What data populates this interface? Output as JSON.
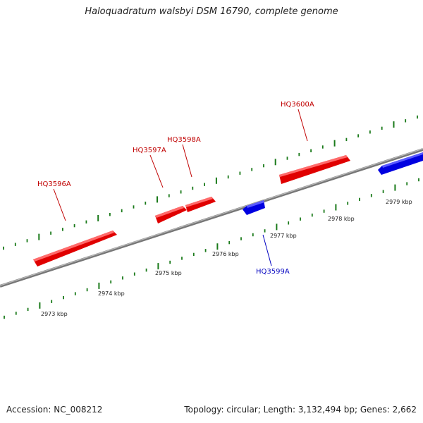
{
  "title": "Haloquadratum walsbyi DSM 16790, complete genome",
  "footer": {
    "accession": "Accession: NC_008212",
    "summary": "Topology: circular; Length: 3,132,494 bp; Genes: 2,662"
  },
  "genes": [
    {
      "label": "HQ3596A",
      "strand": "forward",
      "color": "#e00000"
    },
    {
      "label": "HQ3597A",
      "strand": "forward",
      "color": "#e00000"
    },
    {
      "label": "HQ3598A",
      "strand": "forward",
      "color": "#e00000"
    },
    {
      "label": "HQ3600A",
      "strand": "forward",
      "color": "#e00000"
    },
    {
      "label": "HQ3599A",
      "strand": "reverse",
      "color": "#0000e0"
    }
  ],
  "scale_labels": [
    "2973 kbp",
    "2974 kbp",
    "2975 kbp",
    "2976 kbp",
    "2977 kbp",
    "2978 kbp",
    "2979 kbp"
  ],
  "colors": {
    "forward": "#e00000",
    "reverse": "#0000e0",
    "tick": "#1a7a1a",
    "backbone": "#888888"
  }
}
